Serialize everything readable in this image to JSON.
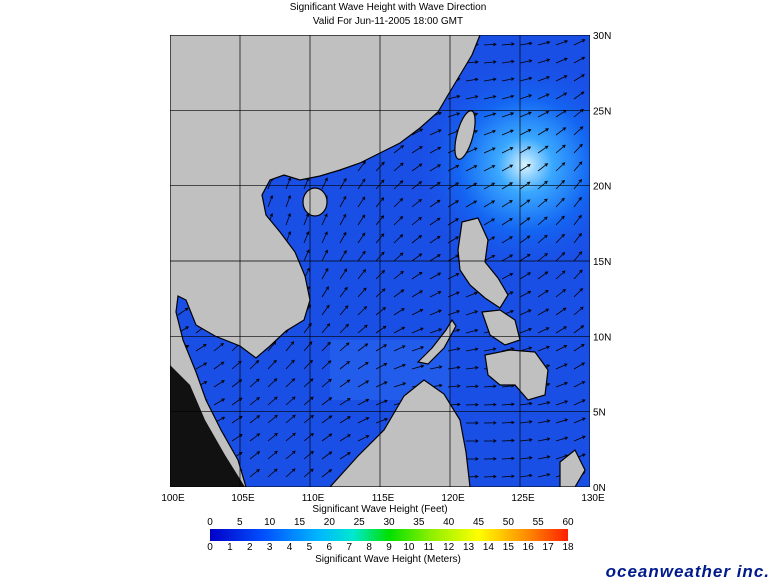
{
  "header": {
    "title": "Significant Wave Height with Wave Direction",
    "subtitle": "Valid For Jun-11-2005 18:00 GMT"
  },
  "map": {
    "lon_labels": [
      "100E",
      "105E",
      "110E",
      "115E",
      "120E",
      "125E",
      "130E"
    ],
    "lat_labels": [
      "0N",
      "5N",
      "10N",
      "15N",
      "20N",
      "25N",
      "30N"
    ]
  },
  "axis_title": "Significant Wave Height (Feet)",
  "colorbar": {
    "feet_labels": [
      "0",
      "5",
      "10",
      "15",
      "20",
      "25",
      "30",
      "35",
      "40",
      "45",
      "50",
      "55",
      "60"
    ],
    "meters_labels": [
      "0",
      "1",
      "2",
      "3",
      "4",
      "5",
      "6",
      "7",
      "8",
      "9",
      "10",
      "11",
      "12",
      "13",
      "14",
      "15",
      "16",
      "17",
      "18"
    ],
    "meters_title": "Significant Wave Height (Meters)"
  },
  "brand": "oceanweather inc."
}
